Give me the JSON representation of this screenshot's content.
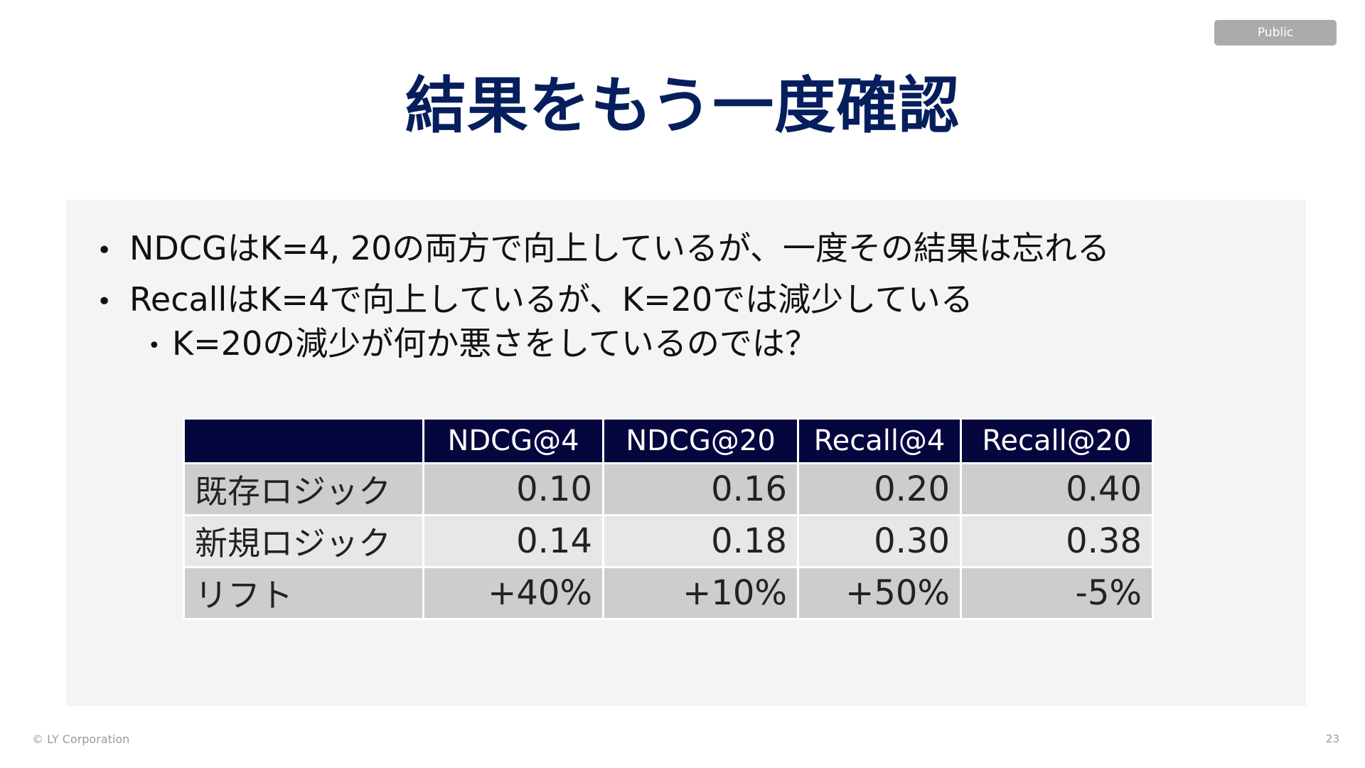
{
  "badge": "Public",
  "title": "結果をもう一度確認",
  "bullets": [
    "NDCGはK=4, 20の両方で向上しているが、一度その結果は忘れる",
    "RecallはK=4で向上しているが、K=20では減少している"
  ],
  "sub_bullet": "K=20の減少が何か悪さをしているのでは？",
  "bullet_glyph": "•",
  "table": {
    "headers": [
      "",
      "NDCG@4",
      "NDCG@20",
      "Recall@4",
      "Recall@20"
    ],
    "rows": [
      [
        "既存ロジック",
        "0.10",
        "0.16",
        "0.20",
        "0.40"
      ],
      [
        "新規ロジック",
        "0.14",
        "0.18",
        "0.30",
        "0.38"
      ],
      [
        "リフト",
        "+40%",
        "+10%",
        "+50%",
        "-5%"
      ]
    ]
  },
  "footer": "© LY Corporation",
  "page_number": "23",
  "colors": {
    "title": "#061f5c",
    "header_bg": "#06063f",
    "panel_bg": "#f4f4f4",
    "badge_bg": "#ababab"
  }
}
